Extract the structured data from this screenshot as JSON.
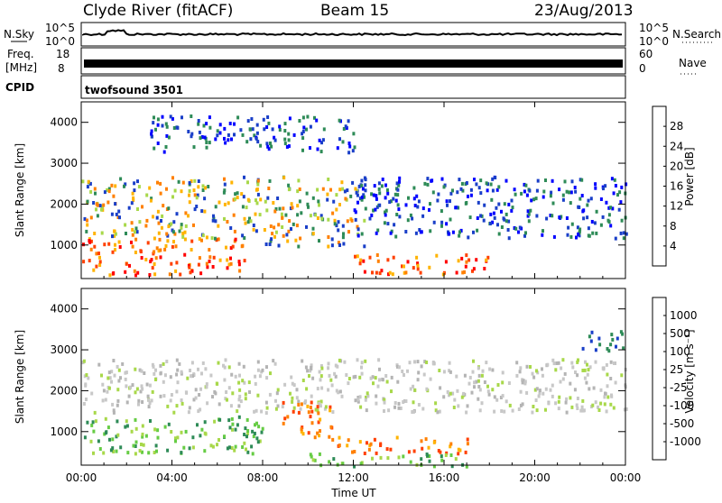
{
  "header": {
    "station": "Clyde River (fitACF)",
    "beam": "Beam 15",
    "date": "23/Aug/2013"
  },
  "summary_panels": {
    "nsky_label": "N.Sky",
    "nsky_ticks": [
      "10^5",
      "10^0"
    ],
    "nsearch_label": "N.Search",
    "nsearch_ticks": [
      "10^5",
      "10^0"
    ],
    "freq_label_1": "Freq.",
    "freq_label_2": "[MHz]",
    "freq_ticks": [
      "18",
      "8"
    ],
    "nave_label": "Nave",
    "nave_ticks": [
      "60",
      "0"
    ],
    "cpid_label": "CPID",
    "cpid_value": "twofsound 3501"
  },
  "chart_data": [
    {
      "type": "heatmap",
      "title": "",
      "xlabel": "Time UT",
      "ylabel": "Slant Range [km]",
      "x_ticks": [
        "00:00",
        "04:00",
        "08:00",
        "12:00",
        "16:00",
        "20:00",
        "00:00"
      ],
      "y_ticks": [
        1000,
        2000,
        3000,
        4000
      ],
      "xlim_hours": [
        0,
        24
      ],
      "ylim_km": [
        180,
        4500
      ],
      "colorbar": {
        "label": "Power [dB]",
        "ticks": [
          "28",
          "24",
          "20",
          "16",
          "12",
          "8",
          "4"
        ],
        "colors": [
          "#ff0000",
          "#ff4000",
          "#ff8000",
          "#ffb300",
          "#a8d84a",
          "#2e8b57",
          "#1a3fc8",
          "#0000ff"
        ]
      },
      "regions": [
        {
          "t0": 0.0,
          "t1": 7.2,
          "r0": 300,
          "r1": 1200,
          "level": "high"
        },
        {
          "t0": 0.0,
          "t1": 8.0,
          "r0": 1200,
          "r1": 2700,
          "level": "mid"
        },
        {
          "t0": 8.0,
          "t1": 12.5,
          "r0": 1000,
          "r1": 2700,
          "level": "mid"
        },
        {
          "t0": 12.0,
          "t1": 18.0,
          "r0": 300,
          "r1": 800,
          "level": "high"
        },
        {
          "t0": 12.0,
          "t1": 24.0,
          "r0": 1200,
          "r1": 2700,
          "level": "low"
        },
        {
          "t0": 3.0,
          "t1": 12.0,
          "r0": 3300,
          "r1": 4200,
          "level": "low"
        }
      ]
    },
    {
      "type": "heatmap",
      "title": "",
      "xlabel": "Time UT",
      "ylabel": "Slant Range [km]",
      "x_ticks": [
        "00:00",
        "04:00",
        "08:00",
        "12:00",
        "16:00",
        "20:00",
        "00:00"
      ],
      "y_ticks": [
        1000,
        2000,
        3000,
        4000
      ],
      "xlim_hours": [
        0,
        24
      ],
      "ylim_km": [
        180,
        4500
      ],
      "colorbar": {
        "label": "Velocity [m s⁻¹]",
        "ticks": [
          "1000",
          "500",
          "100",
          "25",
          "-25",
          "-100",
          "-500",
          "-1000"
        ],
        "colors": [
          "#1a3fc8",
          "#2e8b57",
          "#66cc44",
          "#a8d84a",
          "#c8c8c8",
          "#ffb300",
          "#ff8000",
          "#ff4000",
          "#ff0000"
        ]
      },
      "regions": [
        {
          "t0": 0.0,
          "t1": 8.0,
          "r0": 500,
          "r1": 1400,
          "level": "green"
        },
        {
          "t0": 0.0,
          "t1": 24.0,
          "r0": 1500,
          "r1": 2800,
          "level": "gray"
        },
        {
          "t0": 8.8,
          "t1": 11.0,
          "r0": 900,
          "r1": 1800,
          "level": "orange"
        },
        {
          "t0": 11.0,
          "t1": 17.0,
          "r0": 500,
          "r1": 900,
          "level": "orange"
        },
        {
          "t0": 10.0,
          "t1": 17.0,
          "r0": 180,
          "r1": 500,
          "level": "green"
        },
        {
          "t0": 22.0,
          "t1": 24.0,
          "r0": 3000,
          "r1": 3500,
          "level": "blue"
        }
      ]
    }
  ]
}
